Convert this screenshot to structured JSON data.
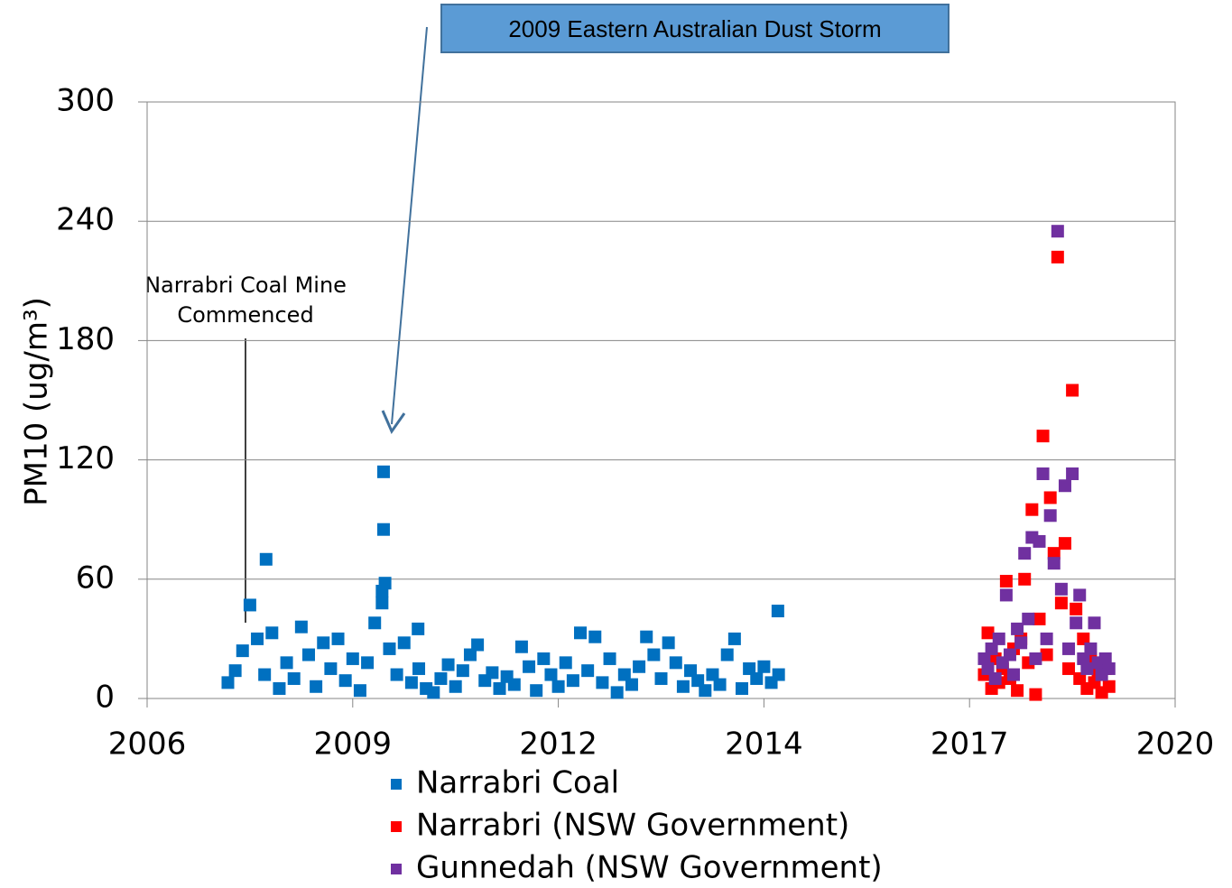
{
  "chart_data": {
    "type": "scatter",
    "y_label": "PM10 (ug/m³)",
    "xlim": [
      2006,
      2020
    ],
    "xticks": [
      2006,
      {
        "value": 2008.8,
        "label": "2009"
      },
      {
        "value": 2011.6,
        "label": "2012"
      },
      {
        "value": 2014.4,
        "label": "2014"
      },
      {
        "value": 2017.2,
        "label": "2017"
      },
      2020
    ],
    "ylim": [
      0,
      300
    ],
    "yticks": [
      0,
      60,
      120,
      180,
      240,
      300
    ],
    "grid": true,
    "legend": "bottom",
    "annotations": [
      {
        "text": "2009 Eastern Australian Dust Storm"
      },
      {
        "lines": [
          "Narrabri Coal Mine",
          "Commenced"
        ]
      }
    ],
    "series": [
      {
        "name": "Narrabri Coal",
        "color": "#0070c0",
        "x": [
          2007.1,
          2007.2,
          2007.3,
          2007.4,
          2007.5,
          2007.6,
          2007.7,
          2007.8,
          2007.9,
          2008.0,
          2008.1,
          2008.2,
          2008.3,
          2008.4,
          2008.5,
          2008.6,
          2008.7,
          2008.8,
          2008.9,
          2009.0,
          2009.1,
          2009.2,
          2009.3,
          2009.4,
          2009.5,
          2009.6,
          2009.7,
          2009.8,
          2009.9,
          2010.0,
          2010.1,
          2010.2,
          2010.3,
          2010.4,
          2010.5,
          2010.6,
          2010.7,
          2010.8,
          2010.9,
          2011.0,
          2011.1,
          2011.2,
          2011.3,
          2011.4,
          2011.5,
          2011.6,
          2011.7,
          2011.8,
          2011.9,
          2012.0,
          2012.1,
          2012.2,
          2012.3,
          2012.4,
          2012.5,
          2012.6,
          2012.7,
          2012.8,
          2012.9,
          2013.0,
          2013.1,
          2013.2,
          2013.3,
          2013.4,
          2013.5,
          2013.6,
          2013.7,
          2013.8,
          2013.9,
          2014.0,
          2014.1,
          2014.2,
          2014.3,
          2014.4,
          2014.5,
          2014.6,
          2007.62,
          2009.22,
          2009.22,
          2009.24,
          2009.2,
          2014.59,
          2009.69
        ],
        "values": [
          8,
          14,
          24,
          47,
          30,
          12,
          33,
          5,
          18,
          10,
          36,
          22,
          6,
          28,
          15,
          30,
          9,
          20,
          4,
          18,
          38,
          48,
          25,
          12,
          28,
          8,
          15,
          5,
          3,
          10,
          17,
          6,
          14,
          22,
          27,
          9,
          13,
          5,
          11,
          7,
          26,
          16,
          4,
          20,
          12,
          6,
          18,
          9,
          33,
          14,
          31,
          8,
          20,
          3,
          12,
          7,
          16,
          31,
          22,
          10,
          28,
          18,
          6,
          14,
          9,
          4,
          12,
          7,
          22,
          30,
          5,
          15,
          10,
          16,
          8,
          12,
          70,
          114,
          85,
          58,
          54,
          44,
          35
        ]
      },
      {
        "name": "Narrabri (NSW Government)",
        "color": "#ff0000",
        "x": [
          2017.4,
          2017.45,
          2017.5,
          2017.55,
          2017.6,
          2017.65,
          2017.7,
          2017.75,
          2017.8,
          2017.85,
          2017.9,
          2017.95,
          2018.0,
          2018.05,
          2018.1,
          2018.15,
          2018.2,
          2018.25,
          2018.3,
          2018.35,
          2018.4,
          2018.45,
          2018.5,
          2018.55,
          2018.6,
          2018.65,
          2018.7,
          2018.75,
          2018.8,
          2018.85,
          2018.9,
          2018.95,
          2019.0,
          2019.05,
          2019.1
        ],
        "values": [
          12,
          33,
          5,
          20,
          8,
          15,
          59,
          10,
          25,
          4,
          30,
          60,
          18,
          95,
          2,
          40,
          132,
          22,
          101,
          73,
          222,
          48,
          78,
          15,
          155,
          45,
          10,
          30,
          5,
          20,
          8,
          12,
          3,
          15,
          6
        ]
      },
      {
        "name": "Gunnedah (NSW Government)",
        "color": "#7030a0",
        "x": [
          2017.4,
          2017.45,
          2017.5,
          2017.55,
          2017.6,
          2017.65,
          2017.7,
          2017.75,
          2017.8,
          2017.85,
          2017.9,
          2017.95,
          2018.0,
          2018.05,
          2018.1,
          2018.15,
          2018.2,
          2018.25,
          2018.3,
          2018.35,
          2018.4,
          2018.45,
          2018.5,
          2018.55,
          2018.6,
          2018.65,
          2018.7,
          2018.75,
          2018.8,
          2018.85,
          2018.9,
          2018.95,
          2019.0,
          2019.05,
          2019.1
        ],
        "values": [
          20,
          15,
          25,
          10,
          30,
          18,
          52,
          22,
          12,
          35,
          28,
          73,
          40,
          81,
          20,
          79,
          113,
          30,
          92,
          68,
          235,
          55,
          107,
          25,
          113,
          38,
          52,
          20,
          15,
          25,
          38,
          18,
          12,
          20,
          15
        ]
      }
    ]
  }
}
